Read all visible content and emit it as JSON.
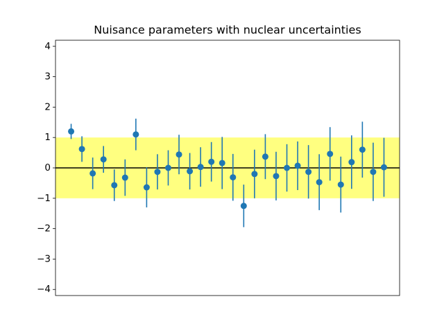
{
  "chart_data": {
    "type": "errorbar",
    "title": "Nuisance parameters with nuclear uncertainties",
    "x": [
      0,
      1,
      2,
      3,
      4,
      5,
      6,
      7,
      8,
      9,
      10,
      11,
      12,
      13,
      14,
      15,
      16,
      17,
      18,
      19,
      20,
      21,
      22,
      23,
      24,
      25,
      26,
      27,
      28,
      29
    ],
    "values": [
      1.2,
      0.62,
      -0.18,
      0.28,
      -0.57,
      -0.32,
      1.1,
      -0.64,
      -0.13,
      0.0,
      0.44,
      -0.11,
      0.03,
      0.2,
      0.16,
      -0.31,
      -1.25,
      -0.2,
      0.37,
      -0.27,
      0.0,
      0.07,
      -0.13,
      -0.47,
      0.46,
      -0.55,
      0.19,
      0.6,
      -0.13,
      0.02
    ],
    "errors": [
      0.25,
      0.42,
      0.52,
      0.44,
      0.52,
      0.6,
      0.52,
      0.66,
      0.58,
      0.58,
      0.65,
      0.6,
      0.65,
      0.65,
      0.86,
      0.77,
      0.7,
      0.8,
      0.74,
      0.8,
      0.78,
      0.8,
      0.88,
      0.92,
      0.88,
      0.92,
      0.88,
      0.92,
      0.96,
      0.97
    ],
    "color": "#1f77b4",
    "band": [
      -1,
      1
    ],
    "band_color": "#ffff80",
    "hline": 0,
    "hline_color": "#000000",
    "xlim": [
      -1.45,
      30.45
    ],
    "ylim": [
      -4.2,
      4.2
    ],
    "yticks": [
      {
        "value": -4,
        "label": "−4"
      },
      {
        "value": -3,
        "label": "−3"
      },
      {
        "value": -2,
        "label": "−2"
      },
      {
        "value": -1,
        "label": "−1"
      },
      0,
      1,
      2,
      3,
      4
    ]
  }
}
